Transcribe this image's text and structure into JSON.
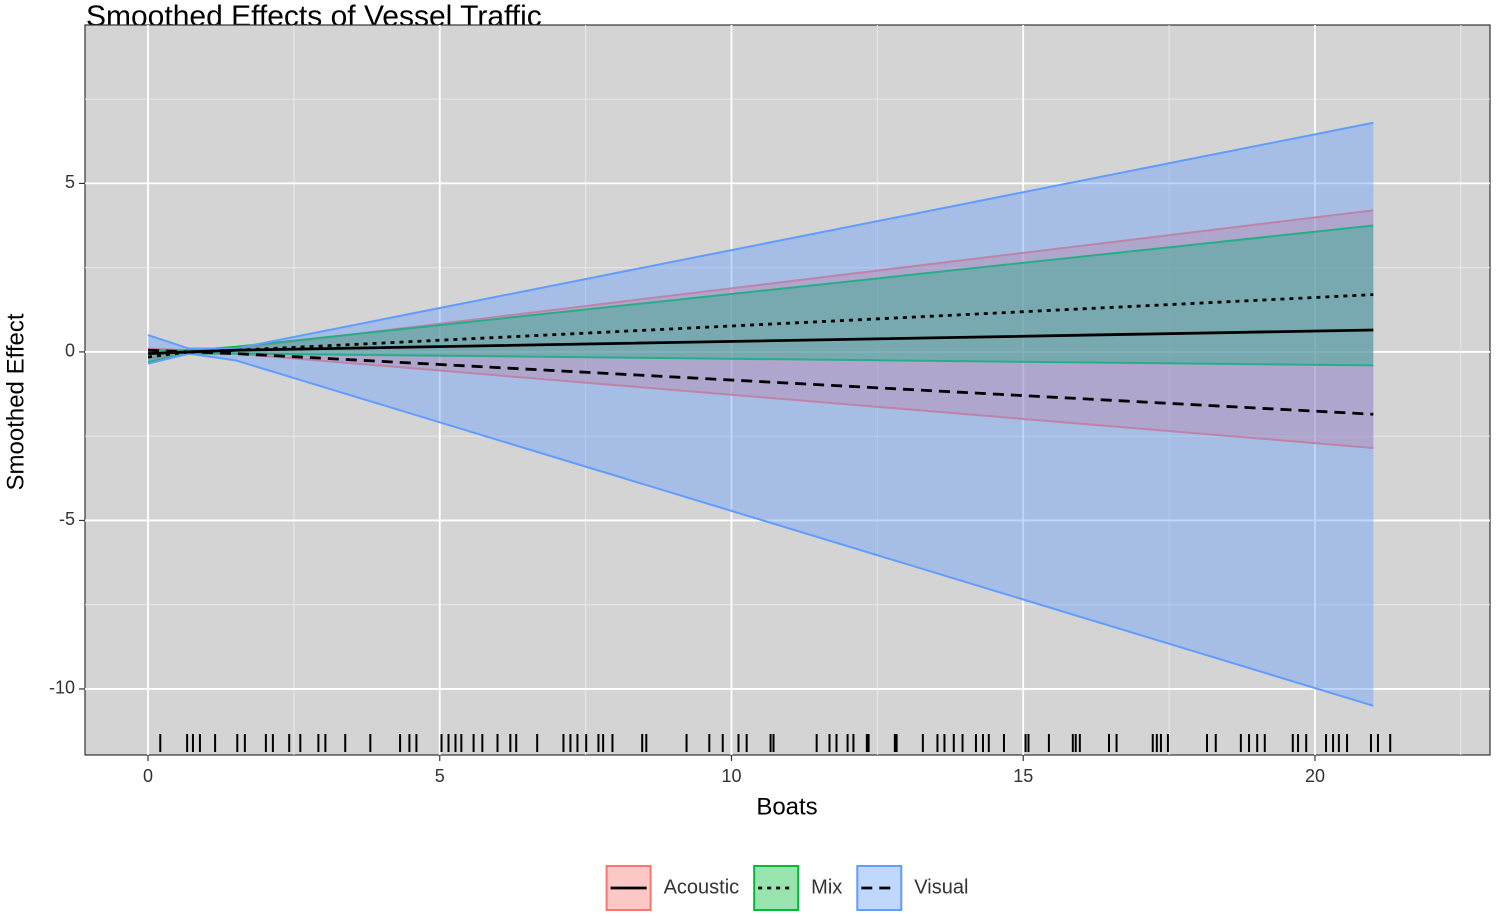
{
  "chart_data": {
    "type": "ribbon-line",
    "title": "Smoothed Effects of Vessel Traffic",
    "x_label": "Boats",
    "y_label": "Smoothed Effect",
    "x": [
      0,
      0.7,
      1.5,
      21
    ],
    "series": [
      {
        "name": "Acoustic",
        "color": "#F8766D",
        "linetype": "solid",
        "values": [
          -0.05,
          0,
          0.05,
          0.65
        ],
        "upper": [
          0.1,
          0.05,
          0.1,
          4.2
        ],
        "lower": [
          -0.2,
          -0.05,
          -0.05,
          -2.85
        ]
      },
      {
        "name": "Mix",
        "color": "#00BA38",
        "linetype": "dotted",
        "values": [
          -0.15,
          0,
          0.05,
          1.7
        ],
        "upper": [
          0.05,
          0.05,
          0.15,
          3.75
        ],
        "lower": [
          -0.3,
          -0.05,
          -0.05,
          -0.4
        ]
      },
      {
        "name": "Visual",
        "color": "#619CFF",
        "linetype": "dashed",
        "values": [
          0.05,
          0,
          -0.05,
          -1.85
        ],
        "upper": [
          0.5,
          0.1,
          0.1,
          6.8
        ],
        "lower": [
          -0.35,
          -0.05,
          -0.25,
          -10.5
        ]
      }
    ],
    "rug": [
      0.21,
      0.67,
      0.77,
      0.89,
      1.15,
      1.53,
      1.66,
      2.02,
      2.14,
      2.42,
      2.61,
      2.92,
      3.04,
      3.38,
      3.81,
      4.32,
      4.48,
      4.6,
      5.03,
      5.15,
      5.27,
      5.37,
      5.58,
      5.73,
      5.99,
      6.21,
      6.31,
      6.67,
      7.12,
      7.24,
      7.36,
      7.51,
      7.72,
      7.8,
      7.96,
      8.47,
      8.54,
      9.23,
      9.62,
      9.85,
      10.12,
      10.26,
      10.67,
      10.72,
      11.46,
      11.68,
      11.8,
      11.99,
      12.09,
      12.32,
      12.35,
      12.8,
      12.83,
      13.28,
      13.53,
      13.65,
      13.81,
      13.96,
      14.19,
      14.31,
      14.41,
      14.67,
      15.04,
      15.09,
      15.44,
      15.85,
      15.9,
      15.97,
      16.47,
      16.6,
      17.22,
      17.29,
      17.36,
      17.48,
      18.15,
      18.3,
      18.73,
      18.87,
      19.01,
      19.14,
      19.62,
      19.71,
      19.85,
      20.19,
      20.31,
      20.41,
      20.55,
      20.96,
      21.08,
      21.29
    ],
    "xlim": [
      -1.08,
      23.0
    ],
    "ylim": [
      -11.96,
      9.7
    ],
    "xticks": [
      0,
      5,
      10,
      15,
      20
    ],
    "yticks": [
      5,
      0,
      -5,
      -10
    ],
    "x_minor_ticks": [
      2.5,
      7.5,
      12.5,
      17.5,
      22.5
    ],
    "y_minor_ticks": [
      7.5,
      2.5,
      -2.5,
      -7.5
    ],
    "grid": true,
    "legend_position": "bottom"
  }
}
